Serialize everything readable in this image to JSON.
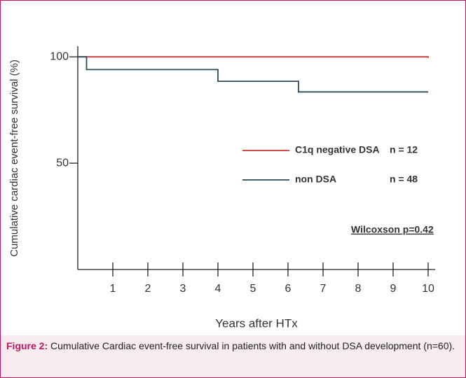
{
  "chart_data": {
    "type": "step",
    "ylabel": "Cumulative cardiac event-free survival (%)",
    "xlabel": "Years after HTx",
    "xlim": [
      0,
      10.2
    ],
    "xticks": [
      1,
      2,
      3,
      4,
      5,
      6,
      7,
      8,
      9,
      10
    ],
    "ylim": [
      0,
      105
    ],
    "yticks": [
      50,
      100
    ],
    "series": [
      {
        "name": "C1q negative DSA",
        "n_label": "n = 12",
        "color": "#cc3333",
        "x": [
          0,
          10
        ],
        "values": [
          100,
          99.5
        ]
      },
      {
        "name": "non DSA",
        "n_label": "n = 48",
        "color": "#2b4a5c",
        "x": [
          0,
          0.25,
          4,
          6.3,
          10
        ],
        "values": [
          100,
          94,
          88.5,
          83.5,
          83.5
        ]
      }
    ],
    "annotation": "Wilcoxson  p=0.42",
    "caption_label": "Figure 2:",
    "caption_text": "Cumulative Cardiac event-free survival in patients with and without DSA development (n=60)."
  }
}
